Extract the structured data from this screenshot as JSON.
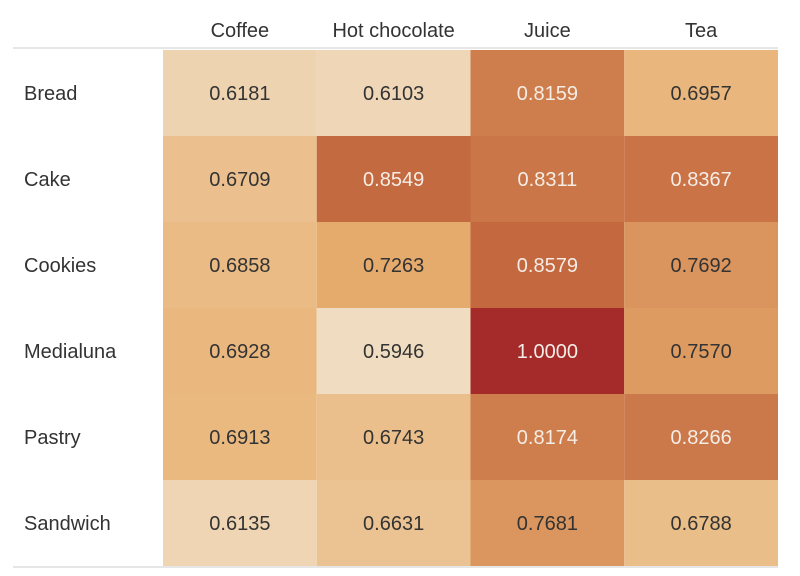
{
  "chart_data": {
    "type": "heatmap",
    "title": "",
    "xlabel": "",
    "ylabel": "",
    "columns": [
      "Coffee",
      "Hot chocolate",
      "Juice",
      "Tea"
    ],
    "rows": [
      "Bread",
      "Cake",
      "Cookies",
      "Medialuna",
      "Pastry",
      "Sandwich"
    ],
    "values": [
      [
        0.6181,
        0.6103,
        0.8159,
        0.6957
      ],
      [
        0.6709,
        0.8549,
        0.8311,
        0.8367
      ],
      [
        0.6858,
        0.7263,
        0.8579,
        0.7692
      ],
      [
        0.6928,
        0.5946,
        1.0,
        0.757
      ],
      [
        0.6913,
        0.6743,
        0.8174,
        0.8266
      ],
      [
        0.6135,
        0.6631,
        0.7681,
        0.6788
      ]
    ],
    "value_format": "4 decimals",
    "color_scale": {
      "low": "#F0DCC0",
      "mid": "#E8B070",
      "high_mid": "#C46A40",
      "high": "#A52A2A"
    },
    "text_colors": {
      "dark": "#333333",
      "light": "#F5EDE6"
    },
    "grid_line_color": "#CCCCCC"
  }
}
